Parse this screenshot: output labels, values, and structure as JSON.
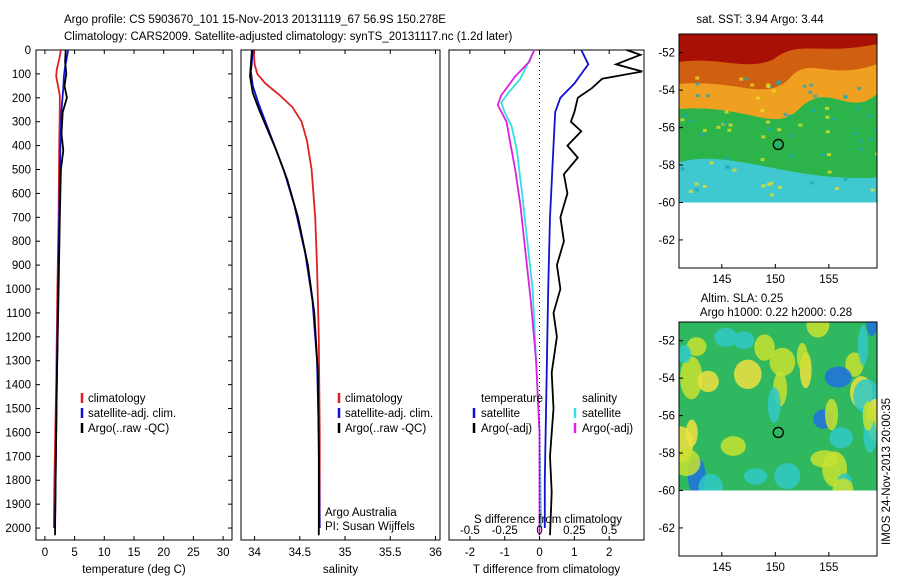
{
  "header": {
    "title_line1": "Argo profile: CS 5903670_101 15-Nov-2013 20131119_67 56.9S 150.278E",
    "title_line2": "Climatology: CARS2009. Satellite-adjusted climatology: synTS_20131117.nc (1.2d later)"
  },
  "colors": {
    "climatology": "#e02020",
    "satellite": "#1010d0",
    "argo": "#000000",
    "satellite_s": "#30e0e0",
    "argo_s": "#e020e0"
  },
  "chart_data": [
    {
      "id": "temperature",
      "type": "line",
      "xlabel": "temperature (deg C)",
      "xlim": [
        -1.5,
        31.5
      ],
      "ylim": [
        2050,
        0
      ],
      "x_ticks": [
        0,
        5,
        10,
        15,
        20,
        25,
        30
      ],
      "y_ticks": [
        0,
        100,
        200,
        300,
        400,
        500,
        600,
        700,
        800,
        900,
        1000,
        1100,
        1200,
        1300,
        1400,
        1500,
        1600,
        1700,
        1800,
        1900,
        2000
      ],
      "legend": [
        "climatology",
        "satellite-adj. clim.",
        "Argo(..raw -QC)"
      ],
      "series": [
        {
          "name": "climatology",
          "color": "#e02020",
          "points": [
            [
              2.7,
              0
            ],
            [
              2.4,
              40
            ],
            [
              2.0,
              80
            ],
            [
              1.9,
              110
            ],
            [
              2.2,
              150
            ],
            [
              2.5,
              190
            ],
            [
              2.5,
              250
            ],
            [
              2.4,
              400
            ],
            [
              2.3,
              700
            ],
            [
              2.1,
              1000
            ],
            [
              1.9,
              1400
            ],
            [
              1.6,
              1800
            ],
            [
              1.5,
              2000
            ]
          ]
        },
        {
          "name": "satellite-adj. clim.",
          "color": "#1010d0",
          "points": [
            [
              3.9,
              0
            ],
            [
              3.7,
              30
            ],
            [
              3.4,
              70
            ],
            [
              3.2,
              110
            ],
            [
              3.1,
              160
            ],
            [
              2.8,
              250
            ],
            [
              2.6,
              400
            ],
            [
              2.4,
              700
            ],
            [
              2.2,
              1000
            ],
            [
              2.0,
              1400
            ],
            [
              1.8,
              1800
            ],
            [
              1.7,
              2000
            ]
          ]
        },
        {
          "name": "Argo(..raw -QC)",
          "color": "#000000",
          "points": [
            [
              3.5,
              0
            ],
            [
              3.4,
              50
            ],
            [
              3.6,
              100
            ],
            [
              3.3,
              150
            ],
            [
              3.7,
              200
            ],
            [
              3.0,
              260
            ],
            [
              2.8,
              350
            ],
            [
              3.1,
              420
            ],
            [
              2.7,
              500
            ],
            [
              2.5,
              700
            ],
            [
              2.3,
              1000
            ],
            [
              2.0,
              1400
            ],
            [
              1.8,
              1800
            ],
            [
              1.7,
              2030
            ]
          ]
        }
      ]
    },
    {
      "id": "salinity",
      "type": "line",
      "xlabel": "salinity",
      "xlim": [
        33.85,
        36.05
      ],
      "ylim": [
        2050,
        0
      ],
      "x_ticks": [
        34,
        34.5,
        35,
        35.5,
        36
      ],
      "x_tick_labels": [
        "34",
        "34.5",
        "35",
        "35.5",
        "36"
      ],
      "legend": [
        "climatology",
        "satellite-adj. clim.",
        "Argo(..raw -QC)"
      ],
      "annotations": [
        "Argo Australia",
        "PI: Susan Wijffels"
      ],
      "series": [
        {
          "name": "climatology",
          "color": "#e02020",
          "points": [
            [
              33.99,
              0
            ],
            [
              34.0,
              60
            ],
            [
              34.03,
              100
            ],
            [
              34.12,
              140
            ],
            [
              34.28,
              190
            ],
            [
              34.42,
              240
            ],
            [
              34.52,
              300
            ],
            [
              34.58,
              380
            ],
            [
              34.63,
              500
            ],
            [
              34.67,
              700
            ],
            [
              34.69,
              900
            ],
            [
              34.71,
              1200
            ],
            [
              34.72,
              1600
            ],
            [
              34.72,
              2000
            ]
          ]
        },
        {
          "name": "satellite-adj. clim.",
          "color": "#1010d0",
          "points": [
            [
              33.98,
              0
            ],
            [
              33.97,
              50
            ],
            [
              33.96,
              90
            ],
            [
              33.98,
              150
            ],
            [
              34.04,
              220
            ],
            [
              34.12,
              300
            ],
            [
              34.22,
              400
            ],
            [
              34.32,
              500
            ],
            [
              34.44,
              650
            ],
            [
              34.56,
              850
            ],
            [
              34.64,
              1050
            ],
            [
              34.69,
              1300
            ],
            [
              34.71,
              1600
            ],
            [
              34.72,
              2000
            ]
          ]
        },
        {
          "name": "Argo(..raw -QC)",
          "color": "#000000",
          "points": [
            [
              33.97,
              0
            ],
            [
              33.96,
              60
            ],
            [
              33.95,
              110
            ],
            [
              33.98,
              180
            ],
            [
              34.05,
              250
            ],
            [
              34.14,
              330
            ],
            [
              34.24,
              420
            ],
            [
              34.36,
              540
            ],
            [
              34.48,
              700
            ],
            [
              34.59,
              900
            ],
            [
              34.66,
              1100
            ],
            [
              34.7,
              1350
            ],
            [
              34.71,
              1700
            ],
            [
              34.71,
              2030
            ]
          ]
        }
      ]
    },
    {
      "id": "difference",
      "type": "line",
      "xlabel": "T difference from climatology",
      "xlabel_top": "S difference from climatology",
      "xlim": [
        -2.6,
        3.0
      ],
      "ylim": [
        2050,
        0
      ],
      "x_ticks": [
        -2,
        -1,
        0,
        1,
        2
      ],
      "x_ticks_s": [
        -0.5,
        -0.25,
        0,
        0.25,
        0.5
      ],
      "x_tick_labels_s": [
        "-0.5",
        "-0.25",
        "0",
        "0.25",
        "0.5"
      ],
      "legend_t": {
        "title": "temperature",
        "items": [
          "satellite",
          "Argo(-adj)"
        ]
      },
      "legend_s": {
        "title": "salinity",
        "items": [
          "satellite",
          "Argo(-adj)"
        ]
      },
      "series": [
        {
          "name": "satellite",
          "color": "#1010d0",
          "points": [
            [
              1.2,
              0
            ],
            [
              1.3,
              30
            ],
            [
              1.4,
              60
            ],
            [
              1.2,
              100
            ],
            [
              1.0,
              140
            ],
            [
              0.6,
              200
            ],
            [
              0.45,
              260
            ],
            [
              0.4,
              400
            ],
            [
              0.3,
              700
            ],
            [
              0.25,
              1000
            ],
            [
              0.2,
              1400
            ],
            [
              0.15,
              1800
            ],
            [
              0.15,
              2000
            ]
          ]
        },
        {
          "name": "Argo(-adj)",
          "color": "#000000",
          "points": [
            [
              2.5,
              0
            ],
            [
              2.9,
              20
            ],
            [
              2.2,
              60
            ],
            [
              2.95,
              90
            ],
            [
              1.8,
              120
            ],
            [
              1.5,
              160
            ],
            [
              1.1,
              200
            ],
            [
              1.0,
              260
            ],
            [
              0.9,
              300
            ],
            [
              1.2,
              340
            ],
            [
              0.8,
              400
            ],
            [
              1.1,
              450
            ],
            [
              0.7,
              520
            ],
            [
              0.8,
              600
            ],
            [
              0.6,
              700
            ],
            [
              0.7,
              800
            ],
            [
              0.5,
              900
            ],
            [
              0.6,
              1000
            ],
            [
              0.4,
              1100
            ],
            [
              0.5,
              1200
            ],
            [
              0.35,
              1350
            ],
            [
              0.4,
              1500
            ],
            [
              0.3,
              1700
            ],
            [
              0.35,
              1850
            ],
            [
              0.3,
              2030
            ]
          ]
        },
        {
          "name": "satellite-s",
          "color": "#30e0e0",
          "points": [
            [
              -0.15,
              0
            ],
            [
              -0.35,
              60
            ],
            [
              -0.55,
              120
            ],
            [
              -0.9,
              180
            ],
            [
              -1.1,
              220
            ],
            [
              -1.0,
              260
            ],
            [
              -0.8,
              320
            ],
            [
              -0.65,
              420
            ],
            [
              -0.5,
              600
            ],
            [
              -0.35,
              800
            ],
            [
              -0.2,
              1000
            ],
            [
              -0.1,
              1300
            ],
            [
              0.0,
              1600
            ],
            [
              0.05,
              2000
            ]
          ]
        },
        {
          "name": "Argo(-adj)-s",
          "color": "#e020e0",
          "points": [
            [
              -0.15,
              0
            ],
            [
              -0.3,
              50
            ],
            [
              -0.7,
              110
            ],
            [
              -0.9,
              150
            ],
            [
              -1.1,
              190
            ],
            [
              -1.2,
              230
            ],
            [
              -0.95,
              300
            ],
            [
              -0.85,
              380
            ],
            [
              -0.7,
              500
            ],
            [
              -0.55,
              650
            ],
            [
              -0.4,
              850
            ],
            [
              -0.25,
              1050
            ],
            [
              -0.1,
              1300
            ],
            [
              0.0,
              1600
            ],
            [
              0.0,
              2030
            ]
          ]
        }
      ]
    },
    {
      "id": "sst_map",
      "type": "heatmap",
      "title": "sat. SST: 3.94 Argo: 3.44",
      "xlim": [
        141,
        159.5
      ],
      "ylim": [
        -63.5,
        -51
      ],
      "x_ticks": [
        145,
        150,
        155
      ],
      "y_ticks": [
        -52,
        -54,
        -56,
        -58,
        -60,
        -62
      ],
      "marker": {
        "lon": 150.278,
        "lat": -56.9
      },
      "data_extent_lat": [
        -60,
        -51
      ]
    },
    {
      "id": "sla_map",
      "type": "heatmap",
      "title_line1": "Altim. SLA: 0.25",
      "title_line2": "Argo h1000: 0.22 h2000: 0.28",
      "xlim": [
        141,
        159.5
      ],
      "ylim": [
        -63.5,
        -51
      ],
      "x_ticks": [
        145,
        150,
        155
      ],
      "y_ticks": [
        -52,
        -54,
        -56,
        -58,
        -60,
        -62
      ],
      "marker": {
        "lon": 150.278,
        "lat": -56.9
      },
      "data_extent_lat": [
        -60,
        -51
      ]
    }
  ],
  "stamp": "IMOS 24-Nov-2013 20:00:35"
}
